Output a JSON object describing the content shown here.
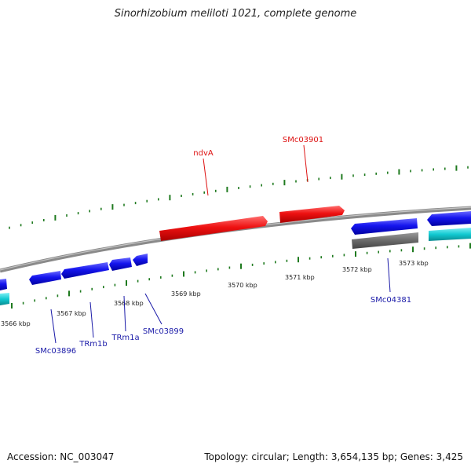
{
  "title": "Sinorhizobium meliloti 1021, complete genome",
  "footer": {
    "accession": "Accession: NC_003047",
    "stats": "Topology: circular; Length: 3,654,135 bp; Genes: 3,425"
  },
  "colors": {
    "backbone": "#8a8a8a",
    "tick": "#1f7a1f",
    "forward_gene": "#ee1111",
    "reverse_gene": "#1515ee",
    "other_gene": "#6a6a6a",
    "cyan_gene": "#11c9d1",
    "label_forward": "#dd1111",
    "label_reverse": "#1a1aa8"
  },
  "scale": {
    "labels": [
      "3566 kbp",
      "3567 kbp",
      "3568 kbp",
      "3569 kbp",
      "3570 kbp",
      "3571 kbp",
      "3572 kbp",
      "3573 kbp"
    ]
  },
  "genes": {
    "forward": [
      "ndvA",
      "SMc03901"
    ],
    "reverse": [
      "SMc03896",
      "TRm1b",
      "TRm1a",
      "SMc03899",
      "SMc04381"
    ]
  }
}
